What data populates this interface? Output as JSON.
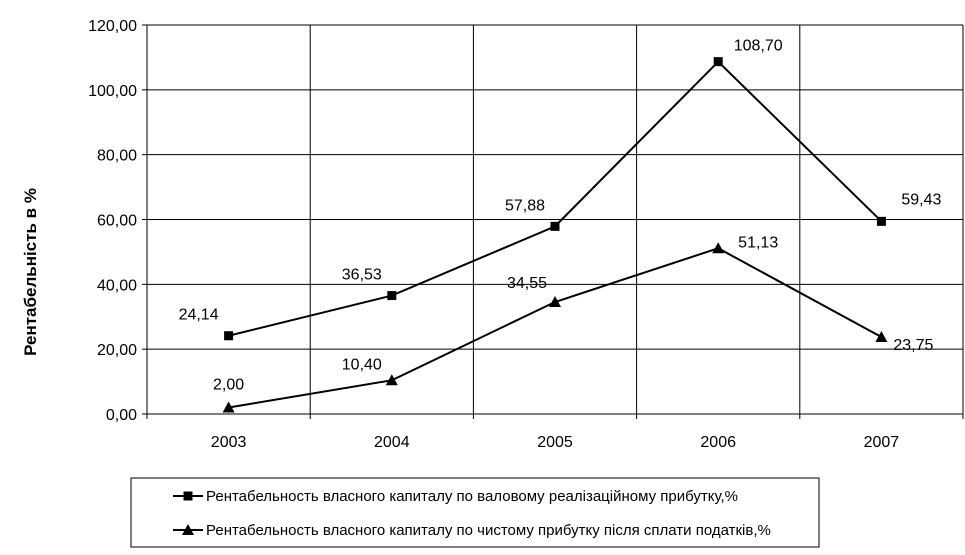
{
  "chart_data": {
    "type": "line",
    "title": "",
    "xlabel": "",
    "ylabel": "Рентабельність в %",
    "categories": [
      "2003",
      "2004",
      "2005",
      "2006",
      "2007"
    ],
    "ylim": [
      0,
      120
    ],
    "yticks": [
      "0,00",
      "20,00",
      "40,00",
      "60,00",
      "80,00",
      "100,00",
      "120,00"
    ],
    "ytick_values": [
      0,
      20,
      40,
      60,
      80,
      100,
      120
    ],
    "grid": true,
    "legend_position": "bottom",
    "series": [
      {
        "name": "Рентабельность власного капиталу  по валовому реалізаційному прибутку,%",
        "marker": "square",
        "values": [
          24.14,
          36.53,
          57.88,
          108.7,
          59.43
        ],
        "labels": [
          "24,14",
          "36,53",
          "57,88",
          "108,70",
          "59,43"
        ]
      },
      {
        "name": "Рентабельность власного капиталу  по чистому прибутку після сплати податків,%",
        "marker": "triangle",
        "values": [
          2.0,
          10.4,
          34.55,
          51.13,
          23.75
        ],
        "labels": [
          "2,00",
          "10,40",
          "34,55",
          "51,13",
          "23,75"
        ]
      }
    ]
  }
}
